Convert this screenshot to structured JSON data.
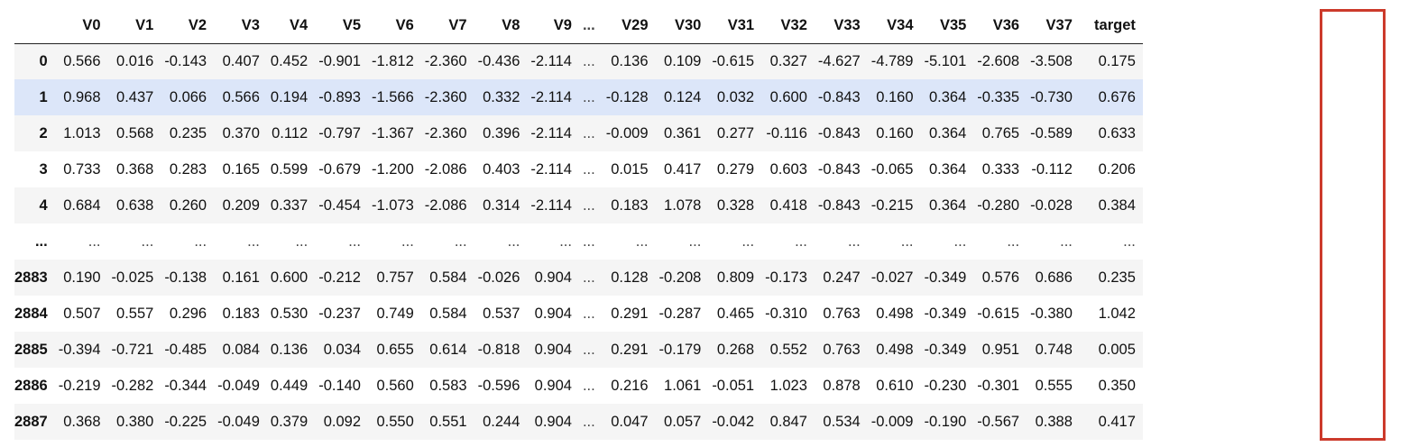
{
  "table": {
    "index_header": "",
    "columns": [
      "V0",
      "V1",
      "V2",
      "V3",
      "V4",
      "V5",
      "V6",
      "V7",
      "V8",
      "V9",
      "...",
      "V29",
      "V30",
      "V31",
      "V32",
      "V33",
      "V34",
      "V35",
      "V36",
      "V37",
      "target"
    ],
    "rows": [
      {
        "index": "0",
        "cells": [
          "0.566",
          "0.016",
          "-0.143",
          "0.407",
          "0.452",
          "-0.901",
          "-1.812",
          "-2.360",
          "-0.436",
          "-2.114",
          "...",
          "0.136",
          "0.109",
          "-0.615",
          "0.327",
          "-4.627",
          "-4.789",
          "-5.101",
          "-2.608",
          "-3.508",
          "0.175"
        ]
      },
      {
        "index": "1",
        "cells": [
          "0.968",
          "0.437",
          "0.066",
          "0.566",
          "0.194",
          "-0.893",
          "-1.566",
          "-2.360",
          "0.332",
          "-2.114",
          "...",
          "-0.128",
          "0.124",
          "0.032",
          "0.600",
          "-0.843",
          "0.160",
          "0.364",
          "-0.335",
          "-0.730",
          "0.676"
        ]
      },
      {
        "index": "2",
        "cells": [
          "1.013",
          "0.568",
          "0.235",
          "0.370",
          "0.112",
          "-0.797",
          "-1.367",
          "-2.360",
          "0.396",
          "-2.114",
          "...",
          "-0.009",
          "0.361",
          "0.277",
          "-0.116",
          "-0.843",
          "0.160",
          "0.364",
          "0.765",
          "-0.589",
          "0.633"
        ]
      },
      {
        "index": "3",
        "cells": [
          "0.733",
          "0.368",
          "0.283",
          "0.165",
          "0.599",
          "-0.679",
          "-1.200",
          "-2.086",
          "0.403",
          "-2.114",
          "...",
          "0.015",
          "0.417",
          "0.279",
          "0.603",
          "-0.843",
          "-0.065",
          "0.364",
          "0.333",
          "-0.112",
          "0.206"
        ]
      },
      {
        "index": "4",
        "cells": [
          "0.684",
          "0.638",
          "0.260",
          "0.209",
          "0.337",
          "-0.454",
          "-1.073",
          "-2.086",
          "0.314",
          "-2.114",
          "...",
          "0.183",
          "1.078",
          "0.328",
          "0.418",
          "-0.843",
          "-0.215",
          "0.364",
          "-0.280",
          "-0.028",
          "0.384"
        ]
      },
      {
        "index": "...",
        "cells": [
          "...",
          "...",
          "...",
          "...",
          "...",
          "...",
          "...",
          "...",
          "...",
          "...",
          "...",
          "...",
          "...",
          "...",
          "...",
          "...",
          "...",
          "...",
          "...",
          "...",
          "..."
        ]
      },
      {
        "index": "2883",
        "cells": [
          "0.190",
          "-0.025",
          "-0.138",
          "0.161",
          "0.600",
          "-0.212",
          "0.757",
          "0.584",
          "-0.026",
          "0.904",
          "...",
          "0.128",
          "-0.208",
          "0.809",
          "-0.173",
          "0.247",
          "-0.027",
          "-0.349",
          "0.576",
          "0.686",
          "0.235"
        ]
      },
      {
        "index": "2884",
        "cells": [
          "0.507",
          "0.557",
          "0.296",
          "0.183",
          "0.530",
          "-0.237",
          "0.749",
          "0.584",
          "0.537",
          "0.904",
          "...",
          "0.291",
          "-0.287",
          "0.465",
          "-0.310",
          "0.763",
          "0.498",
          "-0.349",
          "-0.615",
          "-0.380",
          "1.042"
        ]
      },
      {
        "index": "2885",
        "cells": [
          "-0.394",
          "-0.721",
          "-0.485",
          "0.084",
          "0.136",
          "0.034",
          "0.655",
          "0.614",
          "-0.818",
          "0.904",
          "...",
          "0.291",
          "-0.179",
          "0.268",
          "0.552",
          "0.763",
          "0.498",
          "-0.349",
          "0.951",
          "0.748",
          "0.005"
        ]
      },
      {
        "index": "2886",
        "cells": [
          "-0.219",
          "-0.282",
          "-0.344",
          "-0.049",
          "0.449",
          "-0.140",
          "0.560",
          "0.583",
          "-0.596",
          "0.904",
          "...",
          "0.216",
          "1.061",
          "-0.051",
          "1.023",
          "0.878",
          "0.610",
          "-0.230",
          "-0.301",
          "0.555",
          "0.350"
        ]
      },
      {
        "index": "2887",
        "cells": [
          "0.368",
          "0.380",
          "-0.225",
          "-0.049",
          "0.379",
          "0.092",
          "0.550",
          "0.551",
          "0.244",
          "0.904",
          "...",
          "0.047",
          "0.057",
          "-0.042",
          "0.847",
          "0.534",
          "-0.009",
          "-0.190",
          "-0.567",
          "0.388",
          "0.417"
        ]
      }
    ],
    "highlighted_row_index": 1,
    "colors": {
      "row_stripe": "#f5f5f5",
      "row_hover": "#dce6f9",
      "target_frame": "#cc3a2b"
    }
  }
}
